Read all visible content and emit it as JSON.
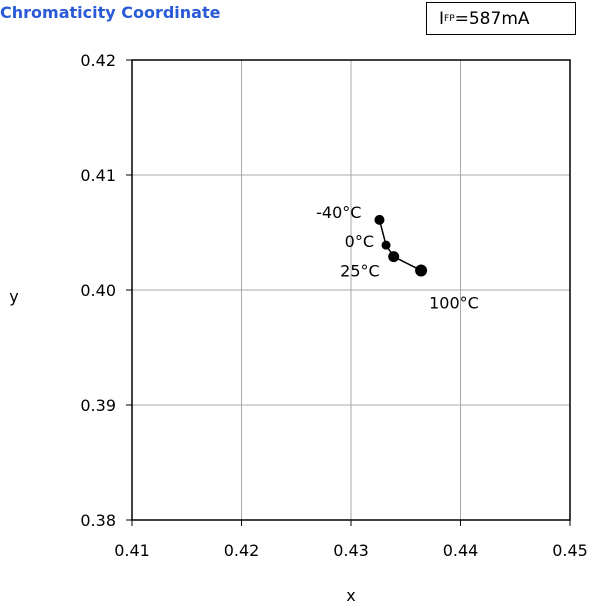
{
  "title": "Chromaticity Coordinate",
  "condition": {
    "main": "I",
    "sub": "FP",
    "rest": "=587mA"
  },
  "chart_data": {
    "type": "line",
    "title": "Chromaticity Coordinate",
    "xlabel": "x",
    "ylabel": "y",
    "xlim": [
      0.41,
      0.45
    ],
    "ylim": [
      0.38,
      0.42
    ],
    "x_ticks": [
      "0.41",
      "0.42",
      "0.43",
      "0.44",
      "0.45"
    ],
    "y_ticks": [
      "0.38",
      "0.39",
      "0.40",
      "0.41",
      "0.42"
    ],
    "grid": true,
    "series": [
      {
        "x": [
          0.4326,
          0.4332,
          0.4339,
          0.4364
        ],
        "y": [
          0.4061,
          0.4039,
          0.4029,
          0.4017
        ],
        "point_labels": [
          "-40°C",
          "0°C",
          "25°C",
          "100°C"
        ]
      }
    ]
  }
}
